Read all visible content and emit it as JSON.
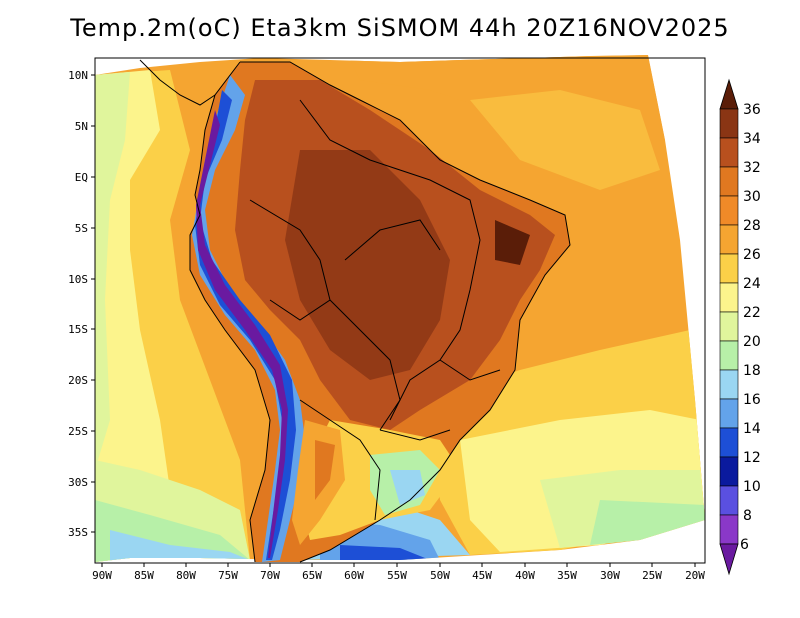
{
  "title": "Temp.2m(oC) Eta3km SiSMOM 44h 20Z16NOV2025",
  "axes": {
    "lat_labels": [
      "10N",
      "5N",
      "EQ",
      "5S",
      "10S",
      "15S",
      "20S",
      "25S",
      "30S",
      "35S"
    ],
    "lon_labels": [
      "90W",
      "85W",
      "80W",
      "75W",
      "70W",
      "65W",
      "60W",
      "55W",
      "50W",
      "45W",
      "40W",
      "35W",
      "30W",
      "25W",
      "20W"
    ]
  },
  "colorbar": {
    "levels": [
      "36",
      "34",
      "32",
      "30",
      "28",
      "26",
      "24",
      "22",
      "20",
      "18",
      "16",
      "14",
      "12",
      "10",
      "8",
      "6"
    ],
    "colors": [
      "#5a1d08",
      "#8a3514",
      "#b8501e",
      "#e07820",
      "#f5a531",
      "#fbd048",
      "#fcf48c",
      "#e0f59c",
      "#b7f0a8",
      "#9ad6f2",
      "#63a3ea",
      "#1d4fd6",
      "#0a1a9e",
      "#3030d8",
      "#8a38c8",
      "#6a1aa0",
      "#4a0c72"
    ]
  },
  "colors": {
    "ocean_warm": "#f5a531",
    "ocean_mid": "#fbd048",
    "ocean_cool": "#fcf48c",
    "land_hot": "#b8501e",
    "land_warm": "#e07820",
    "andes": "#63a3ea",
    "andes_cold": "#6a1aa0"
  }
}
